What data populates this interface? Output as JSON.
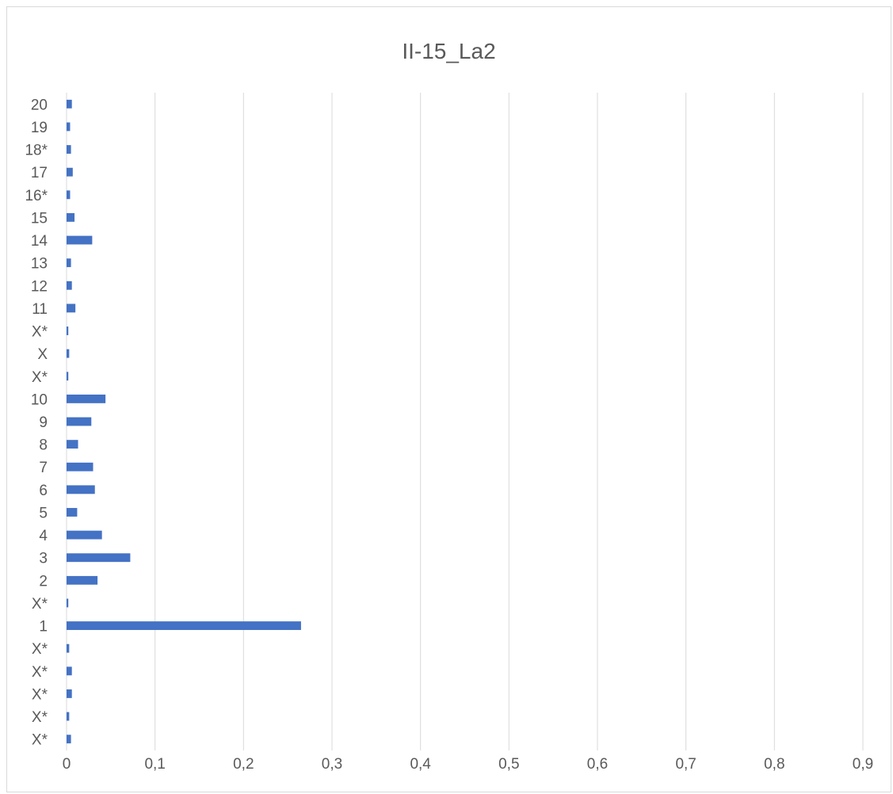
{
  "chart_data": {
    "type": "bar",
    "orientation": "horizontal",
    "title": "II-15_La2",
    "xlabel": "",
    "ylabel": "",
    "xlim": [
      0,
      0.9
    ],
    "x_ticks": [
      "0",
      "0,1",
      "0,2",
      "0,3",
      "0,4",
      "0,5",
      "0,6",
      "0,7",
      "0,8",
      "0,9"
    ],
    "grid": "vertical",
    "legend": "none",
    "bar_color": "#4472C4",
    "categories": [
      "X*",
      "X*",
      "X*",
      "X*",
      "X*",
      "1",
      "X*",
      "2",
      "3",
      "4",
      "5",
      "6",
      "7",
      "8",
      "9",
      "10",
      "X*",
      "X",
      "X*",
      "11",
      "12",
      "13",
      "14",
      "15",
      "16*",
      "17",
      "18*",
      "19",
      "20"
    ],
    "values": [
      0.005,
      0.003,
      0.006,
      0.006,
      0.003,
      0.265,
      0.002,
      0.035,
      0.072,
      0.04,
      0.012,
      0.032,
      0.03,
      0.013,
      0.028,
      0.044,
      0.002,
      0.003,
      0.002,
      0.01,
      0.006,
      0.005,
      0.029,
      0.009,
      0.004,
      0.007,
      0.005,
      0.004,
      0.006
    ]
  }
}
